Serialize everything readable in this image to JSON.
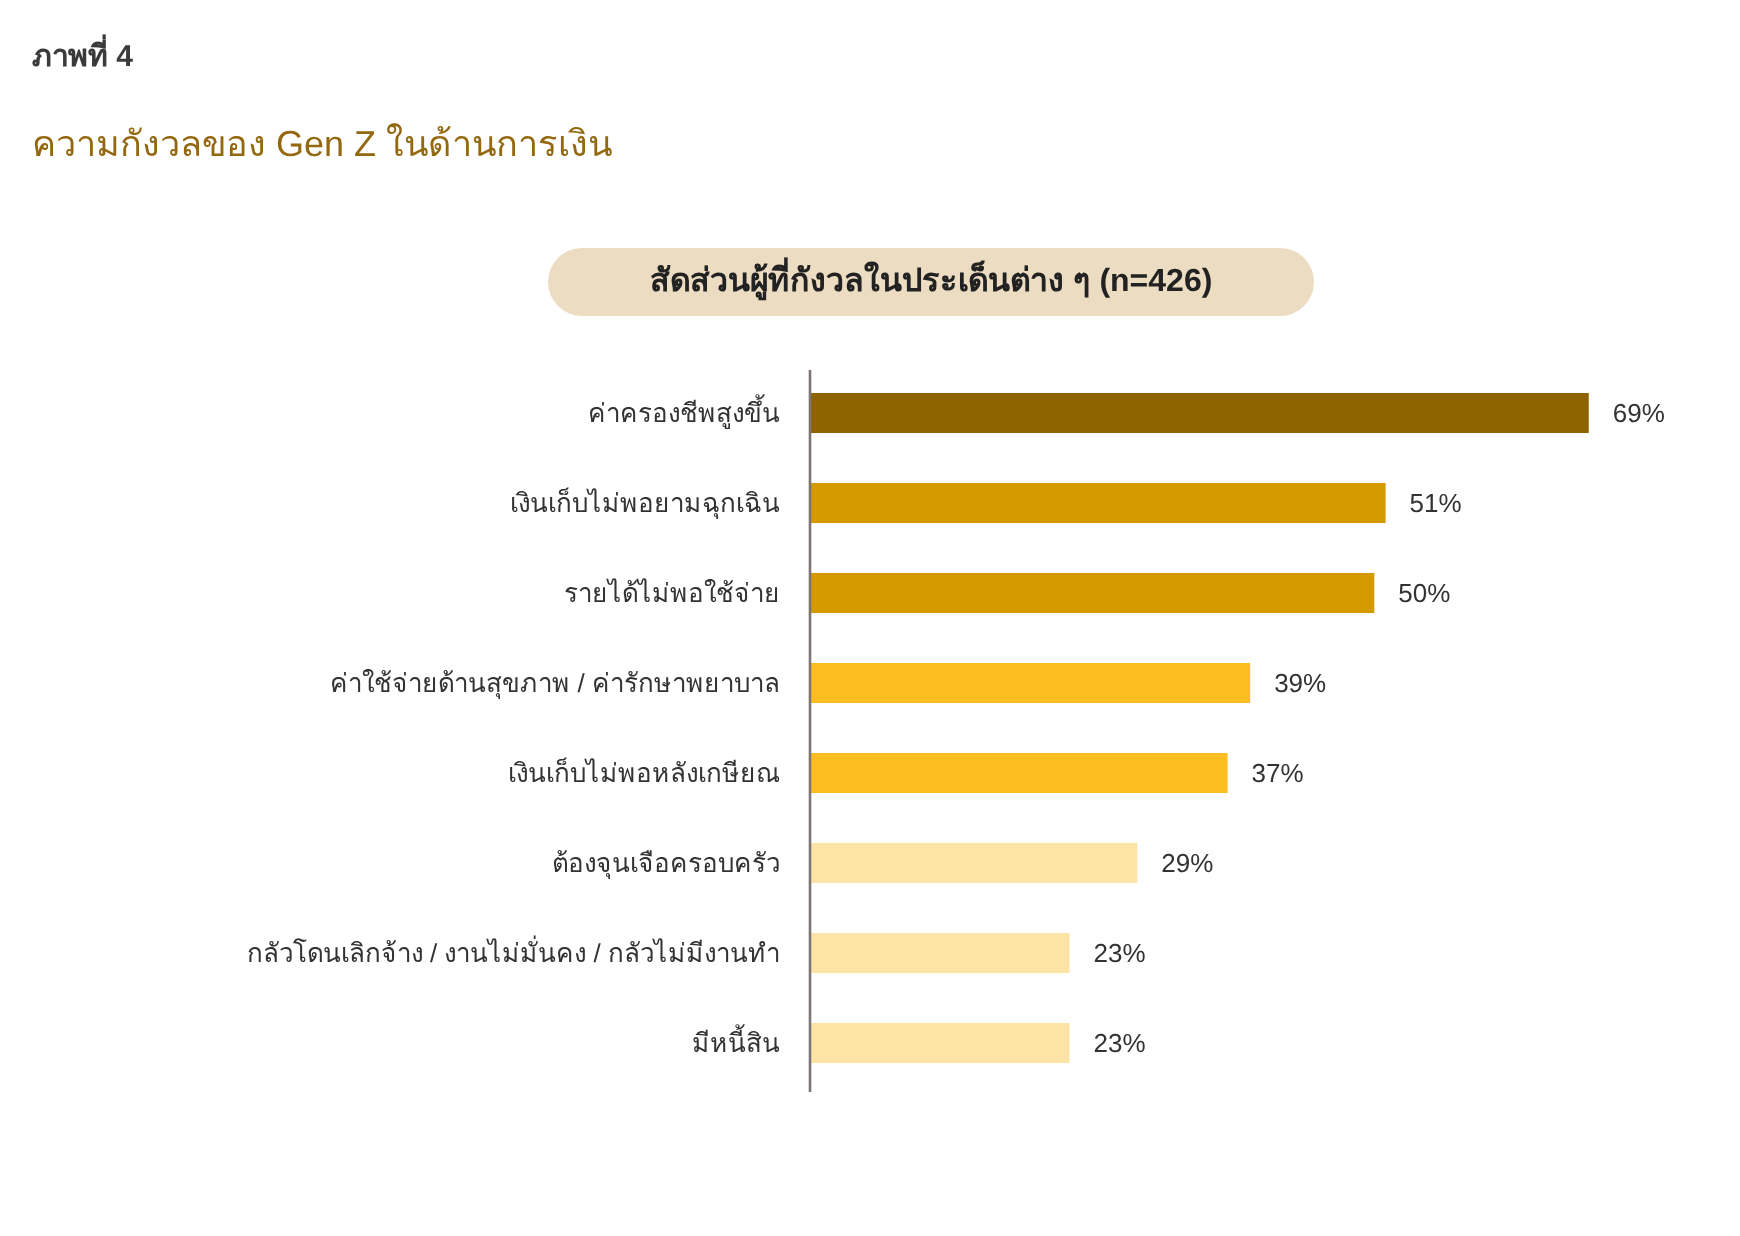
{
  "chart_data": {
    "type": "bar",
    "orientation": "horizontal",
    "title": "ความกังวลของ Gen Z ในด้านการเงิน",
    "subtitle": "สัดส่วนผู้ที่กังวลในประเด็นต่าง ๆ (n=426)",
    "annotations": [
      "ภาพที่ 4"
    ],
    "categories": [
      "ค่าครองชีพสูงขึ้น",
      "เงินเก็บไม่พอยามฉุกเฉิน",
      "รายได้ไม่พอใช้จ่าย",
      "ค่าใช้จ่ายด้านสุขภาพ / ค่ารักษาพยาบาล",
      "เงินเก็บไม่พอหลังเกษียณ",
      "ต้องจุนเจือครอบครัว",
      "กลัวโดนเลิกจ้าง / งานไม่มั่นคง / กลัวไม่มีงานทำ",
      "มีหนี้สิน"
    ],
    "values": [
      69,
      51,
      50,
      39,
      37,
      29,
      23,
      23
    ],
    "colors": [
      "#8f6400",
      "#d59a00",
      "#d59a00",
      "#fdbe22",
      "#fdbe22",
      "#fee3a6",
      "#fee3a6",
      "#fee3a6"
    ],
    "value_labels": [
      "69%",
      "51%",
      "50%",
      "39%",
      "37%",
      "29%",
      "23%",
      "23%"
    ]
  }
}
